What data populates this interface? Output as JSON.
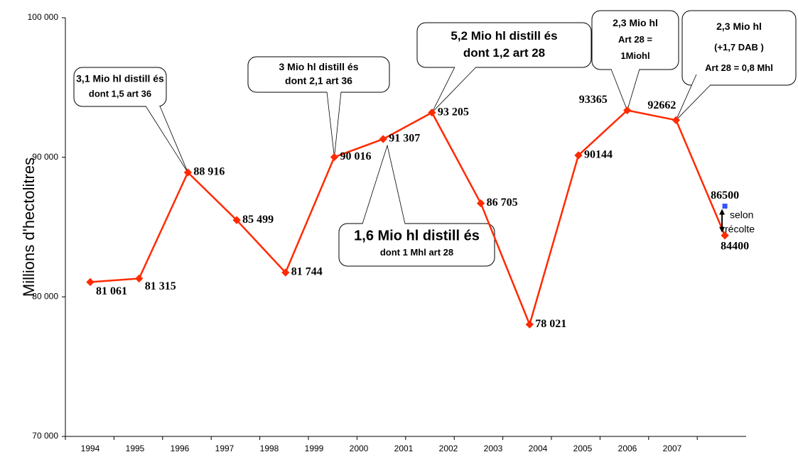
{
  "chart_data": {
    "type": "line",
    "y_label": "Millions d'hectolitres",
    "categories": [
      "1994",
      "1995",
      "1996",
      "1997",
      "1998",
      "1999",
      "2000",
      "2001",
      "2002",
      "2003",
      "2004",
      "2005",
      "2006",
      "2007"
    ],
    "series": [
      {
        "color": "#ff2a00",
        "values": [
          81061,
          81315,
          88916,
          85499,
          81744,
          90016,
          91307,
          93205,
          86705,
          78021,
          90144,
          93365,
          92662,
          84400
        ],
        "value_labels": [
          "81 061",
          "81 315",
          "88 916",
          "85 499",
          "81 744",
          "90 016",
          "91 307",
          "93 205",
          "86 705",
          "78 021",
          "90144",
          "93365",
          "92662",
          "84400"
        ]
      },
      {
        "color": "#3355ff",
        "values": [
          null,
          null,
          null,
          null,
          null,
          null,
          null,
          null,
          null,
          null,
          null,
          null,
          null,
          86500
        ],
        "value_labels": [
          null,
          null,
          null,
          null,
          null,
          null,
          null,
          null,
          null,
          null,
          null,
          null,
          null,
          "86500"
        ]
      }
    ],
    "ylim": [
      70000,
      100000
    ],
    "yticks": [
      {
        "value": 70000,
        "label": "70 000"
      },
      {
        "value": 80000,
        "label": "80 000"
      },
      {
        "value": 90000,
        "label": "90 000"
      },
      {
        "value": 100000,
        "label": "100 000"
      }
    ],
    "annotations": [
      [
        "3,1  Mio  hl distill és",
        "dont 1,5 art 36"
      ],
      [
        "3 Mio hl distill és",
        "dont 2,1 art 36"
      ],
      [
        "5,2  Mio  hl distill és",
        "dont 1,2 art 28"
      ],
      [
        "1,6 Mio hl distill és",
        "dont 1  Mhl art 28"
      ],
      [
        "2,3  Mio hl",
        "Art 28 =",
        "1Miohl"
      ],
      [
        "2,3  Mio hl",
        "(+1,7 DAB )",
        "Art 28 = 0,8    Mhl"
      ],
      [
        "selon",
        "récolte"
      ]
    ]
  }
}
